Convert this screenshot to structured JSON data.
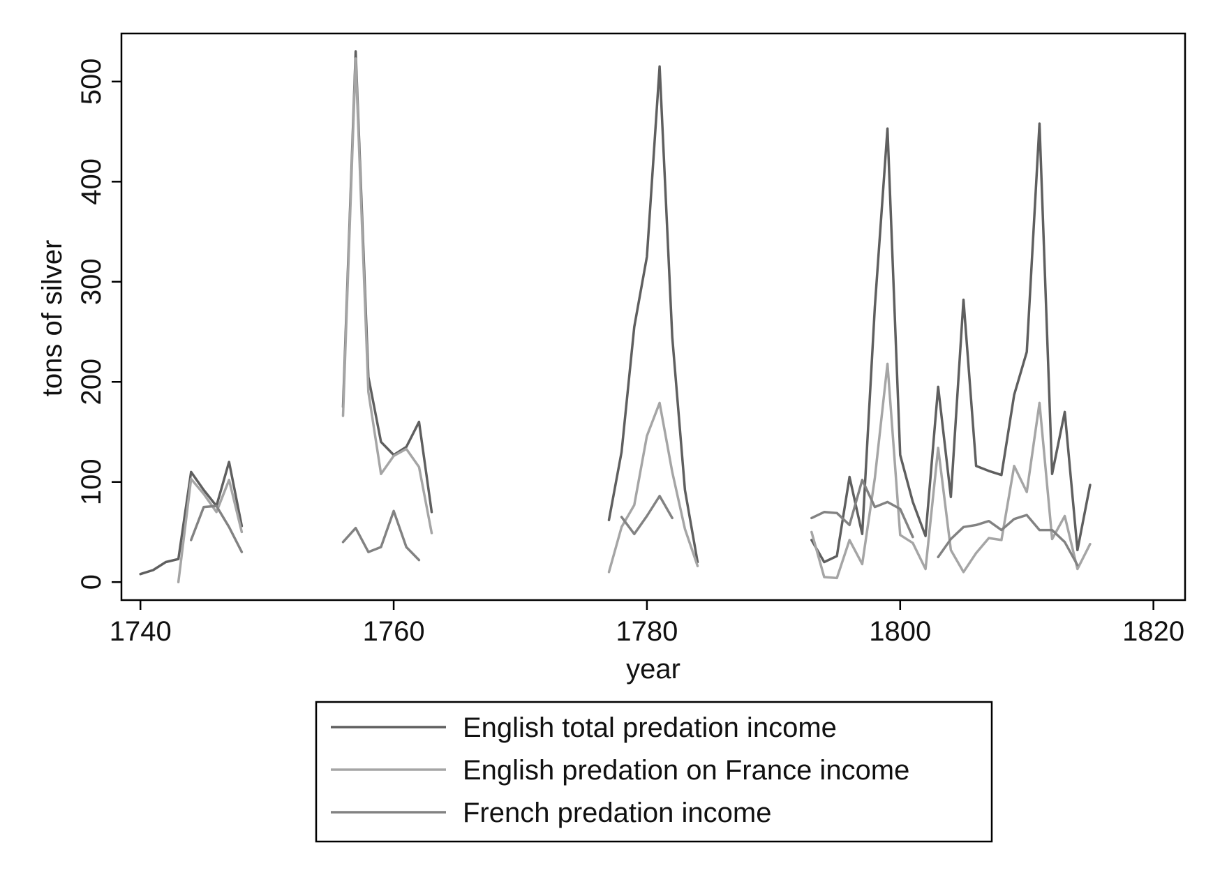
{
  "chart_data": {
    "type": "line",
    "title": "",
    "xlabel": "year",
    "ylabel": "tons of silver",
    "xlim": [
      1738.5,
      1822.5
    ],
    "ylim": [
      -18,
      548
    ],
    "xticks": [
      1740,
      1760,
      1780,
      1800,
      1820
    ],
    "yticks": [
      0,
      100,
      200,
      300,
      400,
      500
    ],
    "grid": false,
    "legend": {
      "position": "bottom",
      "box": true
    },
    "series": [
      {
        "name": "English total predation income",
        "color": "#5f5f5f",
        "segments": [
          [
            [
              1740,
              8
            ],
            [
              1741,
              12
            ],
            [
              1742,
              20
            ],
            [
              1743,
              23
            ],
            [
              1744,
              110
            ],
            [
              1745,
              92
            ],
            [
              1746,
              76
            ],
            [
              1747,
              120
            ],
            [
              1748,
              56
            ]
          ],
          [
            [
              1756,
              175
            ],
            [
              1757,
              530
            ],
            [
              1758,
              205
            ],
            [
              1759,
              140
            ],
            [
              1760,
              127
            ],
            [
              1761,
              135
            ],
            [
              1762,
              160
            ],
            [
              1763,
              70
            ]
          ],
          [
            [
              1777,
              62
            ],
            [
              1778,
              130
            ],
            [
              1779,
              255
            ],
            [
              1780,
              325
            ],
            [
              1781,
              515
            ],
            [
              1782,
              245
            ],
            [
              1783,
              92
            ],
            [
              1784,
              20
            ]
          ],
          [
            [
              1793,
              42
            ],
            [
              1794,
              20
            ],
            [
              1795,
              26
            ],
            [
              1796,
              105
            ],
            [
              1797,
              48
            ],
            [
              1798,
              275
            ],
            [
              1799,
              453
            ],
            [
              1800,
              127
            ],
            [
              1801,
              80
            ],
            [
              1802,
              46
            ],
            [
              1803,
              195
            ],
            [
              1804,
              85
            ],
            [
              1805,
              282
            ],
            [
              1806,
              116
            ],
            [
              1807,
              111
            ],
            [
              1808,
              107
            ],
            [
              1809,
              187
            ],
            [
              1810,
              230
            ],
            [
              1811,
              458
            ],
            [
              1812,
              108
            ],
            [
              1813,
              170
            ],
            [
              1814,
              32
            ],
            [
              1815,
              97
            ]
          ]
        ]
      },
      {
        "name": "English predation on France income",
        "color": "#a5a5a5",
        "segments": [
          [
            [
              1743,
              0
            ],
            [
              1744,
              103
            ],
            [
              1745,
              88
            ],
            [
              1746,
              70
            ],
            [
              1747,
              102
            ],
            [
              1748,
              50
            ]
          ],
          [
            [
              1756,
              166
            ],
            [
              1757,
              523
            ],
            [
              1758,
              190
            ],
            [
              1759,
              108
            ],
            [
              1760,
              126
            ],
            [
              1761,
              133
            ],
            [
              1762,
              115
            ],
            [
              1763,
              49
            ]
          ],
          [
            [
              1777,
              10
            ],
            [
              1778,
              55
            ],
            [
              1779,
              77
            ],
            [
              1780,
              146
            ],
            [
              1781,
              179
            ],
            [
              1782,
              110
            ],
            [
              1783,
              53
            ],
            [
              1784,
              16
            ]
          ],
          [
            [
              1793,
              50
            ],
            [
              1794,
              5
            ],
            [
              1795,
              4
            ],
            [
              1796,
              42
            ],
            [
              1797,
              18
            ],
            [
              1798,
              104
            ],
            [
              1799,
              218
            ],
            [
              1800,
              47
            ],
            [
              1801,
              39
            ],
            [
              1802,
              13
            ],
            [
              1803,
              134
            ],
            [
              1804,
              32
            ],
            [
              1805,
              10
            ],
            [
              1806,
              29
            ],
            [
              1807,
              44
            ],
            [
              1808,
              42
            ],
            [
              1809,
              116
            ],
            [
              1810,
              90
            ],
            [
              1811,
              179
            ],
            [
              1812,
              43
            ],
            [
              1813,
              66
            ],
            [
              1814,
              13
            ],
            [
              1815,
              38
            ]
          ]
        ]
      },
      {
        "name": "French predation income",
        "color": "#828282",
        "segments": [
          [
            [
              1744,
              42
            ],
            [
              1745,
              75
            ],
            [
              1746,
              76
            ],
            [
              1747,
              55
            ],
            [
              1748,
              30
            ]
          ],
          [
            [
              1756,
              40
            ],
            [
              1757,
              54
            ],
            [
              1758,
              30
            ],
            [
              1759,
              35
            ],
            [
              1760,
              71
            ],
            [
              1761,
              35
            ],
            [
              1762,
              22
            ]
          ],
          [
            [
              1778,
              65
            ],
            [
              1779,
              48
            ],
            [
              1780,
              66
            ],
            [
              1781,
              86
            ],
            [
              1782,
              64
            ]
          ],
          [
            [
              1793,
              64
            ],
            [
              1794,
              70
            ],
            [
              1795,
              69
            ],
            [
              1796,
              57
            ],
            [
              1797,
              102
            ],
            [
              1798,
              75
            ],
            [
              1799,
              80
            ],
            [
              1800,
              73
            ],
            [
              1801,
              45
            ]
          ],
          [
            [
              1803,
              25
            ],
            [
              1804,
              43
            ],
            [
              1805,
              55
            ],
            [
              1806,
              57
            ],
            [
              1807,
              61
            ],
            [
              1808,
              52
            ],
            [
              1809,
              63
            ],
            [
              1810,
              67
            ],
            [
              1811,
              52
            ],
            [
              1812,
              52
            ],
            [
              1813,
              40
            ],
            [
              1814,
              17
            ]
          ]
        ]
      }
    ]
  }
}
